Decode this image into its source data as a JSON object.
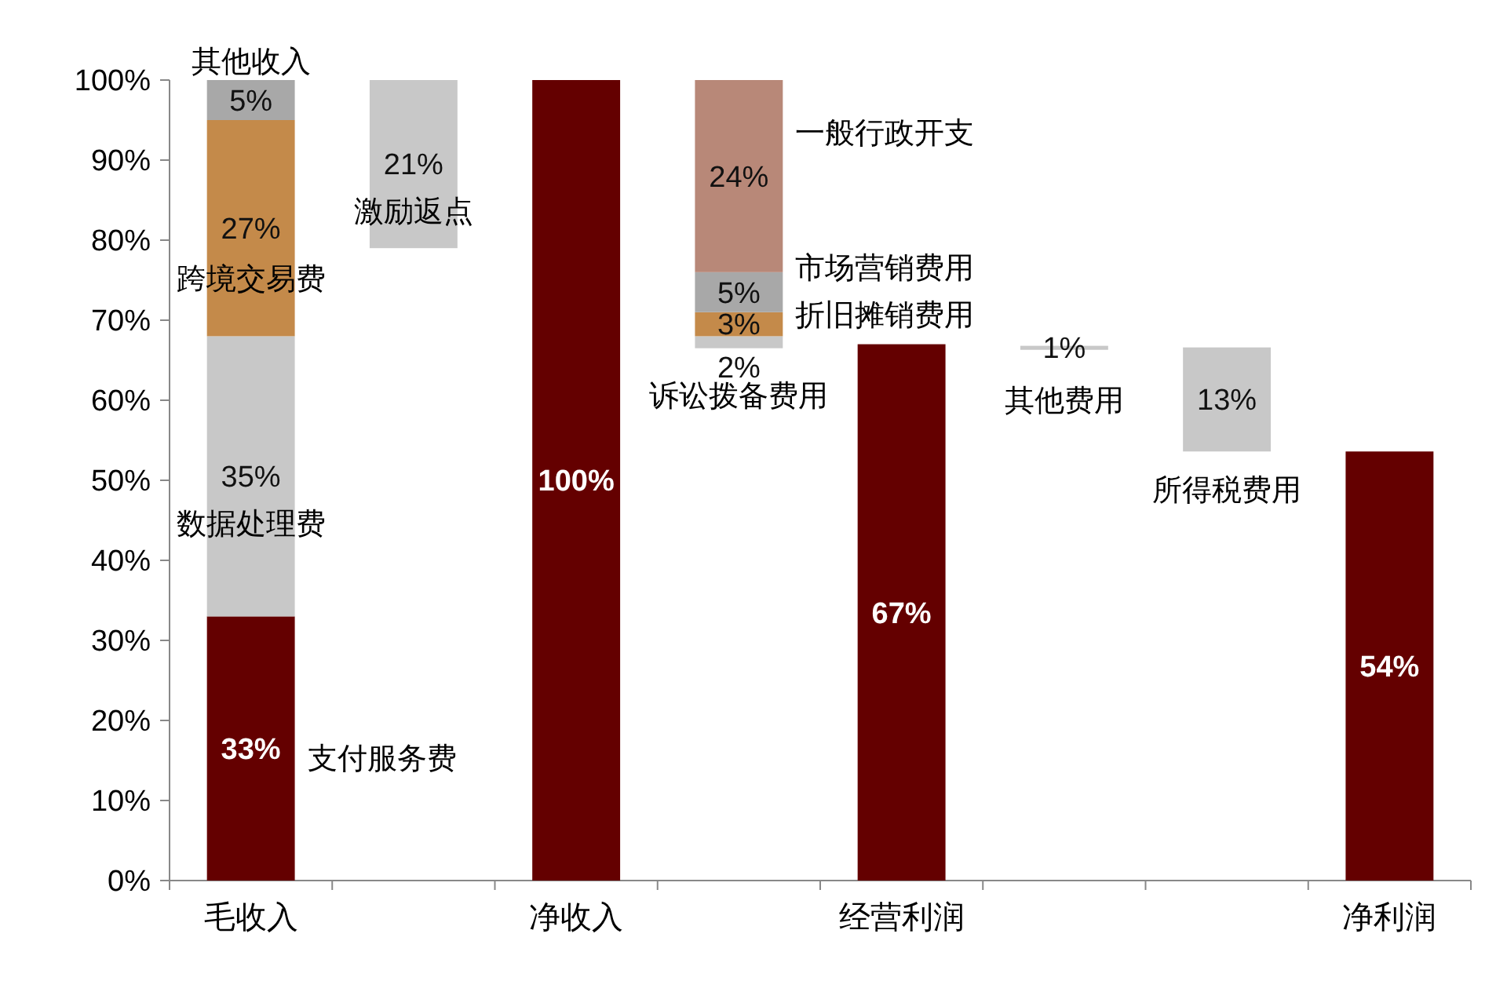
{
  "chart_data": {
    "type": "bar",
    "categories": [
      "毛收入",
      null,
      "净收入",
      null,
      "经营利润",
      null,
      null,
      "净利润"
    ],
    "series": [
      {
        "colors": [
          "#640000",
          "#c8c8c8",
          "#640000",
          "#c8c8c8",
          "#640000",
          "#c8c8c8",
          "#c8c8c8",
          "#640000"
        ],
        "base": [
          0,
          79,
          0,
          66.5,
          0,
          66.3,
          53.6,
          0
        ],
        "values": [
          33,
          21,
          100,
          1.5,
          67,
          0.5,
          13,
          53.6
        ],
        "value_labels": [
          "33%",
          "21%",
          "100%",
          "2%",
          "67%",
          "1%",
          "13%",
          "54%"
        ]
      },
      {
        "colors": [
          "#c8c8c8",
          null,
          null,
          "#c48a4a",
          null,
          null,
          null,
          null
        ],
        "base": [
          33,
          null,
          null,
          68,
          null,
          null,
          null,
          null
        ],
        "values": [
          35,
          null,
          null,
          3,
          null,
          null,
          null,
          null
        ],
        "value_labels": [
          "35%",
          null,
          null,
          "3%",
          null,
          null,
          null,
          null
        ]
      },
      {
        "colors": [
          "#c48a4a",
          null,
          null,
          "#a8a8a8",
          null,
          null,
          null,
          null
        ],
        "base": [
          68,
          null,
          null,
          71,
          null,
          null,
          null,
          null
        ],
        "values": [
          27,
          null,
          null,
          5,
          null,
          null,
          null,
          null
        ],
        "value_labels": [
          "27%",
          null,
          null,
          "5%",
          null,
          null,
          null,
          null
        ]
      },
      {
        "colors": [
          "#a8a8a8",
          null,
          null,
          "#b88878",
          null,
          null,
          null,
          null
        ],
        "base": [
          95,
          null,
          null,
          76,
          null,
          null,
          null,
          null
        ],
        "values": [
          5,
          null,
          null,
          24,
          null,
          null,
          null,
          null
        ],
        "value_labels": [
          "5%",
          null,
          null,
          "24%",
          null,
          null,
          null,
          null
        ]
      }
    ],
    "annotations": [
      "其他收入",
      "跨境交易费",
      "数据处理费",
      "支付服务费",
      "激励返点",
      "一般行政开支",
      "市场营销费用",
      "折旧摊销费用",
      "诉讼拨备费用",
      "其他费用",
      "所得税费用"
    ],
    "ylim": [
      0,
      100
    ],
    "yticks": [
      {
        "value": 0,
        "label": "0%"
      },
      {
        "value": 10,
        "label": "10%"
      },
      {
        "value": 20,
        "label": "20%"
      },
      {
        "value": 30,
        "label": "30%"
      },
      {
        "value": 40,
        "label": "40%"
      },
      {
        "value": 50,
        "label": "50%"
      },
      {
        "value": 60,
        "label": "60%"
      },
      {
        "value": 70,
        "label": "70%"
      },
      {
        "value": 80,
        "label": "80%"
      },
      {
        "value": 90,
        "label": "90%"
      },
      {
        "value": 100,
        "label": "100%"
      }
    ],
    "grid": false
  }
}
